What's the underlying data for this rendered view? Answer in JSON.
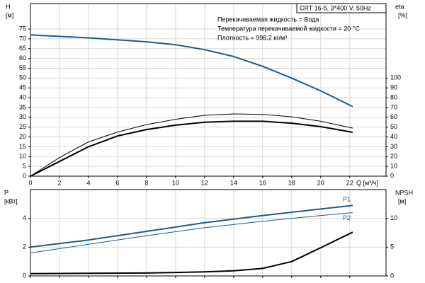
{
  "chart_data": [
    {
      "type": "line",
      "title": "CRT 16-5, 3*400 V, 50Hz",
      "annotations": [
        "Перекачиваемая жидкость = Вода",
        "Температура перекачиваемой жидкости = 20 °C",
        "Плотность = 998.2 кг/м³"
      ],
      "xlabel": "Q [м³/ч]",
      "ylabel": "H",
      "ylabel_unit": "[м]",
      "y2label": "eta",
      "y2label_unit": "[%]",
      "xlim": [
        0,
        24.5
      ],
      "xticks": [
        0,
        2,
        4,
        6,
        8,
        10,
        12,
        14,
        16,
        18,
        20,
        22
      ],
      "ylim": [
        0,
        88
      ],
      "yticks": [
        0,
        5,
        10,
        15,
        20,
        25,
        30,
        35,
        40,
        45,
        50,
        55,
        60,
        65,
        70,
        75
      ],
      "y2lim": [
        0,
        176
      ],
      "y2ticks": [
        0,
        10,
        20,
        30,
        40,
        50,
        60,
        70,
        80,
        90,
        100
      ],
      "grid": true,
      "series": [
        {
          "color": "#1f5a8c",
          "linewidth": 2,
          "x": [
            0,
            4,
            8,
            10,
            12,
            14,
            16,
            18,
            20,
            22.2
          ],
          "values": [
            72,
            70.5,
            68.5,
            67,
            64.5,
            61,
            56,
            50,
            43.5,
            35.5
          ]
        },
        {
          "color": "#000000",
          "linewidth": 1,
          "axis": "y2",
          "x": [
            0,
            2,
            4,
            6,
            8,
            10,
            12,
            14,
            16,
            18,
            20,
            22.2
          ],
          "values": [
            0,
            19,
            35,
            45,
            52.6,
            58,
            62,
            63.5,
            63,
            60.5,
            56,
            49
          ]
        },
        {
          "color": "#000000",
          "linewidth": 2,
          "axis": "y2",
          "x": [
            0,
            2,
            4,
            6,
            8,
            10,
            12,
            14,
            16,
            18,
            20,
            22.2
          ],
          "values": [
            0,
            15,
            30,
            41,
            47.5,
            52,
            55,
            56,
            56,
            54,
            50.5,
            44.7
          ]
        }
      ]
    },
    {
      "type": "line",
      "ylabel": "P",
      "ylabel_unit": "[кВт]",
      "y2label": "NPSH",
      "y2label_unit": "[м]",
      "xlim": [
        0,
        24.5
      ],
      "xticks": [
        0,
        2,
        4,
        6,
        8,
        10,
        12,
        14,
        16,
        18,
        20,
        22
      ],
      "ylim": [
        0,
        6
      ],
      "yticks": [
        0,
        2,
        4
      ],
      "y2lim": [
        0,
        15
      ],
      "y2ticks": [
        0,
        5,
        10
      ],
      "grid": true,
      "series": [
        {
          "name": "P1",
          "color": "#1f5a8c",
          "linewidth": 2,
          "x": [
            0,
            4,
            8,
            12,
            16,
            20,
            22.2
          ],
          "values": [
            2.0,
            2.5,
            3.1,
            3.7,
            4.2,
            4.65,
            4.9
          ]
        },
        {
          "name": "P2",
          "color": "#1f5a8c",
          "linewidth": 1,
          "x": [
            0,
            4,
            8,
            12,
            16,
            20,
            22.2
          ],
          "values": [
            1.6,
            2.2,
            2.8,
            3.35,
            3.8,
            4.2,
            4.4
          ]
        },
        {
          "color": "#000000",
          "linewidth": 2,
          "axis": "y2",
          "x": [
            0,
            8,
            12,
            14,
            16,
            18,
            20,
            22.2
          ],
          "values": [
            0.4,
            0.5,
            0.7,
            0.9,
            1.3,
            2.5,
            4.9,
            7.6
          ]
        }
      ]
    }
  ]
}
